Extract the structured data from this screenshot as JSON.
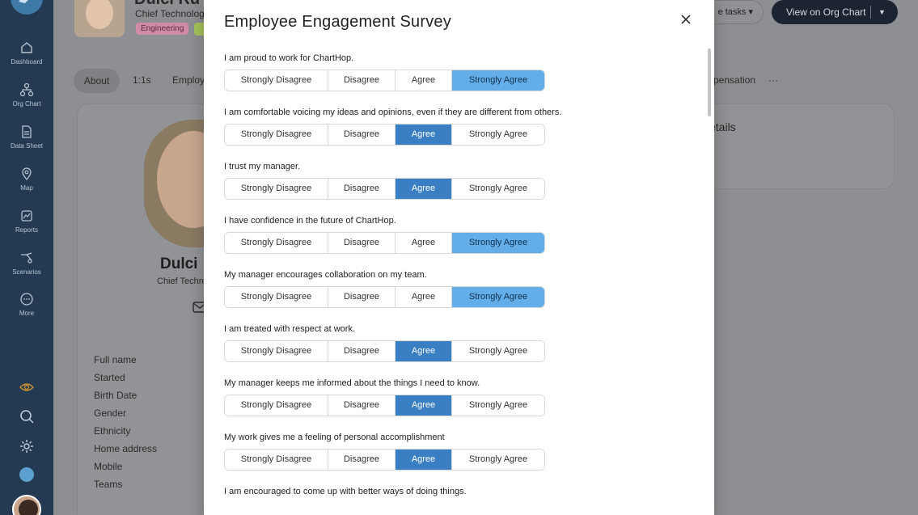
{
  "sidebar": {
    "items": [
      {
        "label": "Dashboard",
        "icon": "home-icon"
      },
      {
        "label": "Org Chart",
        "icon": "org-chart-icon"
      },
      {
        "label": "Data Sheet",
        "icon": "data-sheet-icon"
      },
      {
        "label": "Map",
        "icon": "map-pin-icon"
      },
      {
        "label": "Reports",
        "icon": "reports-icon"
      },
      {
        "label": "Scenarios",
        "icon": "scenarios-icon"
      },
      {
        "label": "More",
        "icon": "more-icon"
      }
    ],
    "bottom_icons": [
      "eye-icon",
      "search-icon",
      "gear-icon",
      "chartbird-icon"
    ]
  },
  "background": {
    "name": "Dulci Ru",
    "title": "Chief Technology",
    "tags": [
      "Engineering",
      "S"
    ],
    "tasks_label": "e tasks",
    "org_chart_label": "View on Org Chart",
    "tabs": [
      "About",
      "1:1s",
      "Employ",
      "pensation",
      "···"
    ],
    "profile_name": "Dulci",
    "profile_title": "Chief Techn",
    "details_heading": "etails",
    "fields": [
      "Full name",
      "Started",
      "Birth Date",
      "Gender",
      "Ethnicity",
      "Home address",
      "Mobile",
      "Teams"
    ]
  },
  "modal": {
    "title": "Employee Engagement Survey",
    "options": [
      "Strongly Disagree",
      "Disagree",
      "Agree",
      "Strongly Agree"
    ],
    "questions": [
      {
        "text": "I am proud to work for ChartHop.",
        "selected": "Strongly Agree"
      },
      {
        "text": "I am comfortable voicing my ideas and opinions, even if they are different from others.",
        "selected": "Agree"
      },
      {
        "text": "I trust my manager.",
        "selected": "Agree"
      },
      {
        "text": "I have confidence in the future of ChartHop.",
        "selected": "Strongly Agree"
      },
      {
        "text": "My manager encourages collaboration on my team.",
        "selected": "Strongly Agree"
      },
      {
        "text": "I am treated with respect at work.",
        "selected": "Agree"
      },
      {
        "text": "My manager keeps me informed about the things I need to know.",
        "selected": "Agree"
      },
      {
        "text": "My work gives me a feeling of personal accomplishment",
        "selected": "Agree"
      },
      {
        "text": "I am encouraged to come up with better ways of doing things.",
        "selected": ""
      }
    ]
  },
  "colors": {
    "sidebar": "#233a52",
    "selected_agree": "#3a7fc4",
    "selected_strongly_agree": "#63aee8"
  }
}
